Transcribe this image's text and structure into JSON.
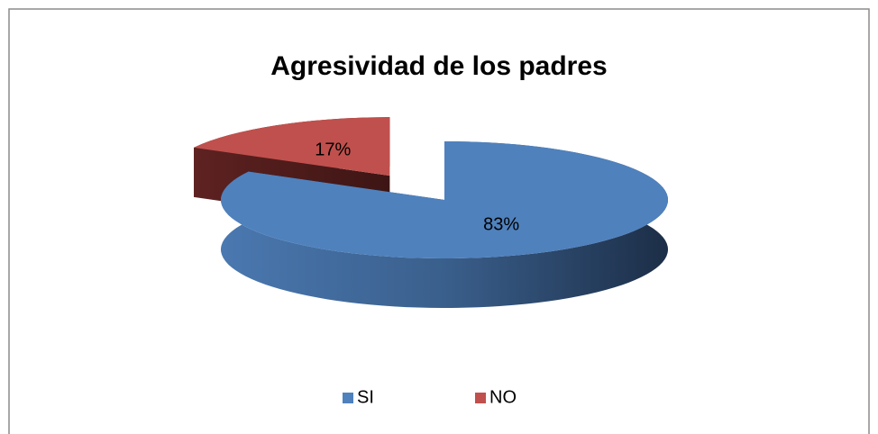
{
  "chart_data": {
    "type": "pie",
    "title": "Agresividad de los padres",
    "categories": [
      "SI",
      "NO"
    ],
    "values": [
      83,
      17
    ],
    "value_labels": [
      "83%",
      "17%"
    ],
    "colors": [
      "#4f81bd",
      "#c0504d"
    ],
    "legend": "bottom"
  }
}
